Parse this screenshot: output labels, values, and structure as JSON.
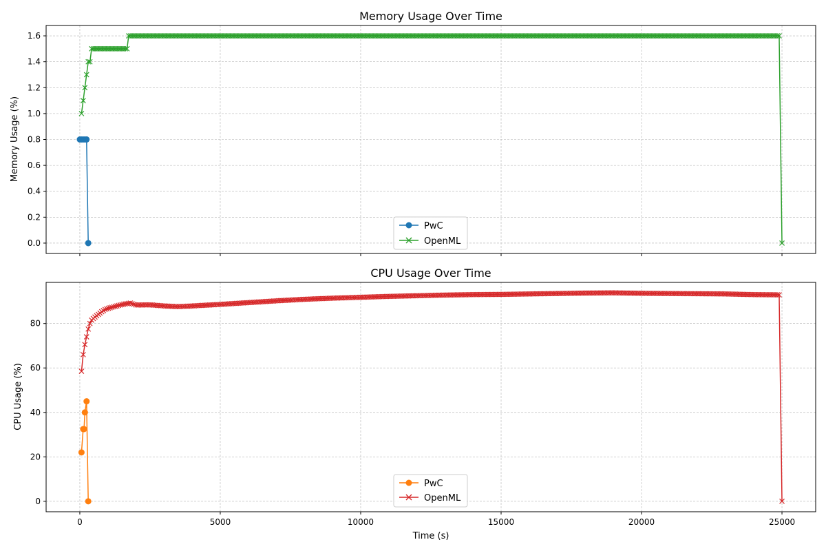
{
  "chart_data": [
    {
      "type": "line",
      "title": "Memory Usage Over Time",
      "xlabel": "",
      "ylabel": "Memory Usage (%)",
      "xlim": [
        -1200,
        26200
      ],
      "ylim": [
        -0.08,
        1.68
      ],
      "xticks": [
        0,
        5000,
        10000,
        15000,
        20000,
        25000
      ],
      "xtick_labels": [],
      "yticks": [
        0.0,
        0.2,
        0.4,
        0.6,
        0.8,
        1.0,
        1.2,
        1.4,
        1.6
      ],
      "ytick_labels": [
        "0.0",
        "0.2",
        "0.4",
        "0.6",
        "0.8",
        "1.0",
        "1.2",
        "1.4",
        "1.6"
      ],
      "grid": true,
      "legend": "lower-center",
      "series": [
        {
          "name": "PwC",
          "color": "#1f77b4",
          "marker": "circle",
          "x": [
            0,
            60,
            120,
            180,
            240,
            300
          ],
          "y": [
            0.8,
            0.8,
            0.8,
            0.8,
            0.8,
            0.0
          ]
        },
        {
          "name": "OpenML",
          "color": "#2ca02c",
          "marker": "x",
          "generator": {
            "x_start": 60,
            "x_step": 60,
            "x_end": 24900,
            "steps": [
              {
                "x_max": 60,
                "y": 1.0
              },
              {
                "x_max": 120,
                "y": 1.1
              },
              {
                "x_max": 180,
                "y": 1.2
              },
              {
                "x_max": 240,
                "y": 1.3
              },
              {
                "x_max": 300,
                "y": 1.4
              },
              {
                "x_max": 360,
                "y": 1.4
              },
              {
                "x_max": 1680,
                "y": 1.5
              },
              {
                "x_max": 24900,
                "y": 1.6
              }
            ]
          },
          "tail": [
            {
              "x": 25000,
              "y": 0.0
            }
          ]
        }
      ]
    },
    {
      "type": "line",
      "title": "CPU Usage Over Time",
      "xlabel": "Time (s)",
      "ylabel": "CPU Usage (%)",
      "xlim": [
        -1200,
        26200
      ],
      "ylim": [
        -4.7,
        98.5
      ],
      "xticks": [
        0,
        5000,
        10000,
        15000,
        20000,
        25000
      ],
      "xtick_labels": [
        "0",
        "5000",
        "10000",
        "15000",
        "20000",
        "25000"
      ],
      "yticks": [
        0,
        20,
        40,
        60,
        80
      ],
      "ytick_labels": [
        "0",
        "20",
        "40",
        "60",
        "80"
      ],
      "grid": true,
      "legend": "lower-center",
      "series": [
        {
          "name": "PwC",
          "color": "#ff7f0e",
          "marker": "circle",
          "x": [
            60,
            120,
            150,
            180,
            240,
            300
          ],
          "y": [
            22,
            32.5,
            32.5,
            40,
            45,
            0
          ]
        },
        {
          "name": "OpenML",
          "color": "#d62728",
          "marker": "x",
          "generator": {
            "x_start": 60,
            "x_step": 60,
            "x_end": 24900,
            "anchors": [
              [
                60,
                58.5
              ],
              [
                120,
                66
              ],
              [
                180,
                70.5
              ],
              [
                240,
                74
              ],
              [
                300,
                77.5
              ],
              [
                360,
                80
              ],
              [
                420,
                81.5
              ],
              [
                500,
                82.5
              ],
              [
                600,
                83.5
              ],
              [
                700,
                84.5
              ],
              [
                800,
                85.5
              ],
              [
                900,
                86.3
              ],
              [
                1000,
                86.8
              ],
              [
                1200,
                87.5
              ],
              [
                1400,
                88.2
              ],
              [
                1600,
                88.8
              ],
              [
                1800,
                89.2
              ],
              [
                2000,
                88.3
              ],
              [
                2500,
                88.4
              ],
              [
                3000,
                87.9
              ],
              [
                3500,
                87.6
              ],
              [
                4000,
                87.9
              ],
              [
                5000,
                88.6
              ],
              [
                6000,
                89.4
              ],
              [
                7000,
                90.2
              ],
              [
                8000,
                90.9
              ],
              [
                9000,
                91.4
              ],
              [
                10000,
                91.8
              ],
              [
                11000,
                92.2
              ],
              [
                12000,
                92.5
              ],
              [
                13000,
                92.8
              ],
              [
                14000,
                93.0
              ],
              [
                15000,
                93.1
              ],
              [
                16000,
                93.3
              ],
              [
                17000,
                93.5
              ],
              [
                18000,
                93.7
              ],
              [
                19000,
                93.8
              ],
              [
                20000,
                93.6
              ],
              [
                21000,
                93.5
              ],
              [
                22000,
                93.4
              ],
              [
                23000,
                93.3
              ],
              [
                24000,
                93.0
              ],
              [
                24900,
                92.9
              ]
            ]
          },
          "tail": [
            {
              "x": 25000,
              "y": 0.0
            }
          ]
        }
      ]
    }
  ]
}
